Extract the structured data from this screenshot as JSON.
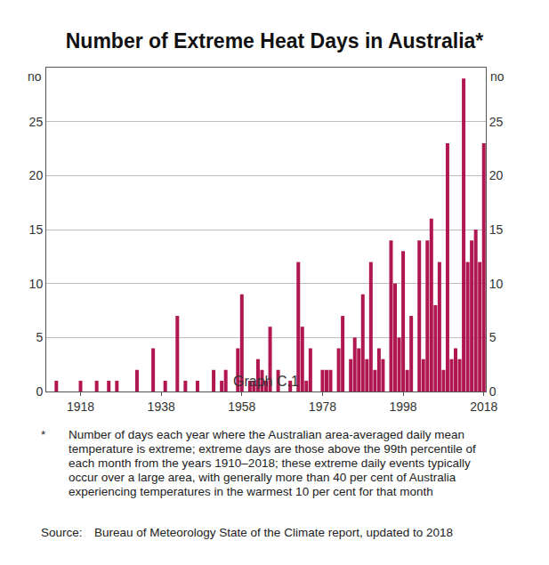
{
  "chart_data": {
    "type": "bar",
    "subtitle": "Graph C.1",
    "title": "Number of Extreme Heat Days in Australia*",
    "ylabel": "no",
    "y2label": "no",
    "x": [
      1910,
      1911,
      1912,
      1913,
      1914,
      1915,
      1916,
      1917,
      1918,
      1919,
      1920,
      1921,
      1922,
      1923,
      1924,
      1925,
      1926,
      1927,
      1928,
      1929,
      1930,
      1931,
      1932,
      1933,
      1934,
      1935,
      1936,
      1937,
      1938,
      1939,
      1940,
      1941,
      1942,
      1943,
      1944,
      1945,
      1946,
      1947,
      1948,
      1949,
      1950,
      1951,
      1952,
      1953,
      1954,
      1955,
      1956,
      1957,
      1958,
      1959,
      1960,
      1961,
      1962,
      1963,
      1964,
      1965,
      1966,
      1967,
      1968,
      1969,
      1970,
      1971,
      1972,
      1973,
      1974,
      1975,
      1976,
      1977,
      1978,
      1979,
      1980,
      1981,
      1982,
      1983,
      1984,
      1985,
      1986,
      1987,
      1988,
      1989,
      1990,
      1991,
      1992,
      1993,
      1994,
      1995,
      1996,
      1997,
      1998,
      1999,
      2000,
      2001,
      2002,
      2003,
      2004,
      2005,
      2006,
      2007,
      2008,
      2009,
      2010,
      2011,
      2012,
      2013,
      2014,
      2015,
      2016,
      2017,
      2018
    ],
    "values": [
      0,
      0,
      1,
      0,
      0,
      0,
      0,
      0,
      1,
      0,
      0,
      0,
      1,
      0,
      0,
      1,
      0,
      1,
      0,
      0,
      0,
      0,
      2,
      0,
      0,
      0,
      4,
      0,
      0,
      1,
      0,
      0,
      7,
      0,
      1,
      0,
      0,
      1,
      0,
      0,
      0,
      2,
      0,
      1,
      2,
      0,
      0,
      4,
      9,
      0,
      1,
      1,
      3,
      2,
      1,
      6,
      0,
      2,
      0,
      0,
      1,
      0,
      12,
      6,
      1,
      4,
      0,
      0,
      2,
      2,
      2,
      0,
      4,
      7,
      0,
      3,
      5,
      4,
      9,
      3,
      12,
      2,
      4,
      3,
      0,
      14,
      10,
      5,
      13,
      2,
      7,
      0,
      14,
      3,
      14,
      16,
      8,
      12,
      2,
      23,
      3,
      4,
      3,
      29,
      12,
      14,
      15,
      12,
      23
    ],
    "color": "#b0164f",
    "xlim": [
      1909.5,
      2018.5
    ],
    "xticks": [
      1918,
      1938,
      1958,
      1978,
      1998,
      2018
    ],
    "ylim": [
      0,
      30
    ],
    "yticks": [
      0,
      5,
      10,
      15,
      20,
      25
    ],
    "y2lim": [
      0,
      30
    ],
    "y2ticks": [
      0,
      5,
      10,
      15,
      20,
      25
    ],
    "grid": true,
    "footnote": {
      "marker": "*",
      "text": "Number of days each year where the Australian area-averaged daily mean temperature is extreme; extreme days are those above the 99th percentile of each month from the years 1910–2018; these extreme daily events typically occur over a large area, with generally more than 40 per cent of Australia experiencing temperatures in the warmest 10 per cent for that month"
    },
    "source": {
      "label": "Source:",
      "text": "Bureau of Meteorology State of the Climate report, updated to 2018"
    }
  }
}
